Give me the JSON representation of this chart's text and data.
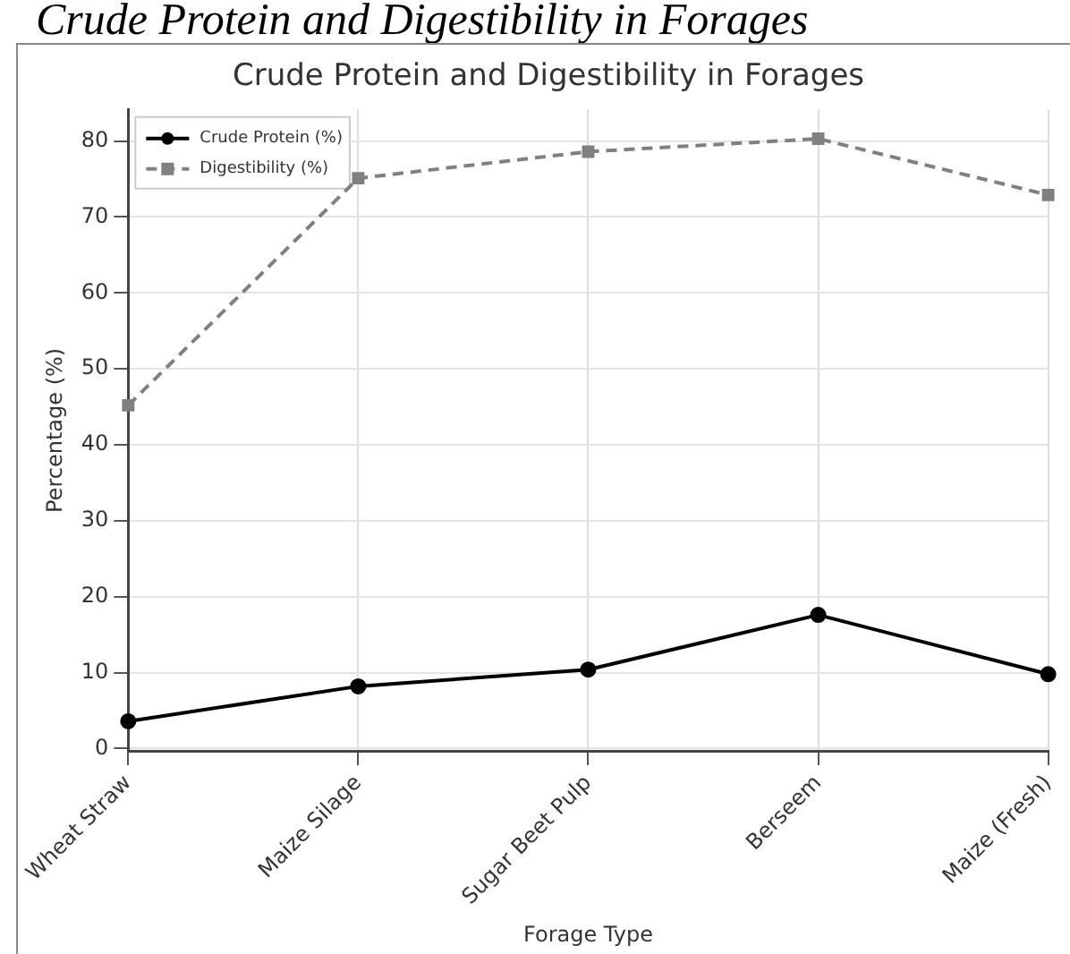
{
  "chart_data": {
    "type": "line",
    "title": "Crude Protein and Digestibility in Forages",
    "xlabel": "Forage Type",
    "ylabel": "Percentage (%)",
    "annotations": [
      "Crude Protein and Digestibility in Forages"
    ],
    "categories": [
      "Wheat Straw",
      "Maize Silage",
      "Sugar Beet Pulp",
      "Berseem",
      "Maize (Fresh)"
    ],
    "series": [
      {
        "name": "Crude Protein (%)",
        "color": "#000000",
        "values": [
          3.6,
          8.2,
          10.4,
          17.6,
          9.8
        ],
        "marker": "circle",
        "line_style": "solid"
      },
      {
        "name": "Digestibility (%)",
        "color": "#808080",
        "values": [
          45.2,
          75.1,
          78.6,
          80.3,
          72.9
        ],
        "marker": "square",
        "line_style": "dashed"
      }
    ],
    "ylim": [
      -0.3,
      84.1
    ],
    "yticks": [
      0,
      10,
      20,
      30,
      40,
      50,
      60,
      70,
      80
    ],
    "grid": true,
    "legend": "top left"
  }
}
